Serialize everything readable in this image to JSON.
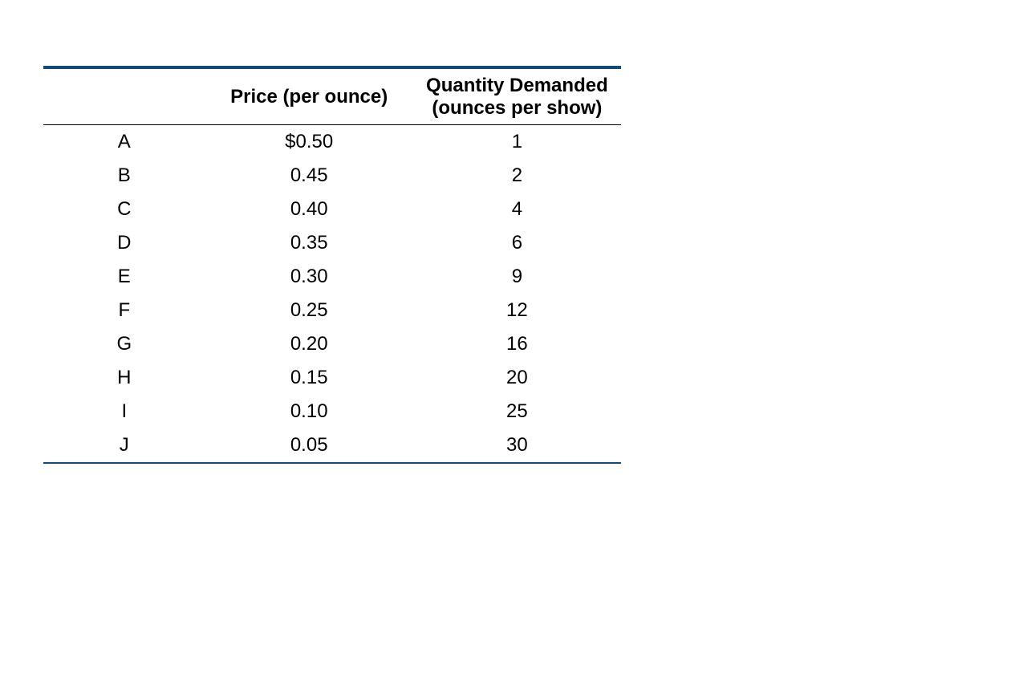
{
  "table": {
    "type": "table",
    "top_rule_color": "#114a82",
    "bottom_rule_color": "#114a82",
    "header_border_color": "#000000",
    "background_color": "#ffffff",
    "text_color": "#000000",
    "font_family": "Arial",
    "header_fontsize": 24,
    "cell_fontsize": 24,
    "header_fontweight": "bold",
    "columns": [
      {
        "key": "label",
        "header": "",
        "width_pct": 28,
        "align": "center"
      },
      {
        "key": "price",
        "header": "Price (per ounce)",
        "width_pct": 36,
        "align": "center"
      },
      {
        "key": "quantity",
        "header": "Quantity Demanded (ounces per show)",
        "width_pct": 36,
        "align": "center"
      }
    ],
    "rows": [
      {
        "label": "A",
        "price": "$0.50",
        "quantity": "1"
      },
      {
        "label": "B",
        "price": "0.45",
        "quantity": "2"
      },
      {
        "label": "C",
        "price": "0.40",
        "quantity": "4"
      },
      {
        "label": "D",
        "price": "0.35",
        "quantity": "6"
      },
      {
        "label": "E",
        "price": "0.30",
        "quantity": "9"
      },
      {
        "label": "F",
        "price": "0.25",
        "quantity": "12"
      },
      {
        "label": "G",
        "price": "0.20",
        "quantity": "16"
      },
      {
        "label": "H",
        "price": "0.15",
        "quantity": "20"
      },
      {
        "label": "I",
        "price": "0.10",
        "quantity": "25"
      },
      {
        "label": "J",
        "price": "0.05",
        "quantity": "30"
      }
    ]
  }
}
